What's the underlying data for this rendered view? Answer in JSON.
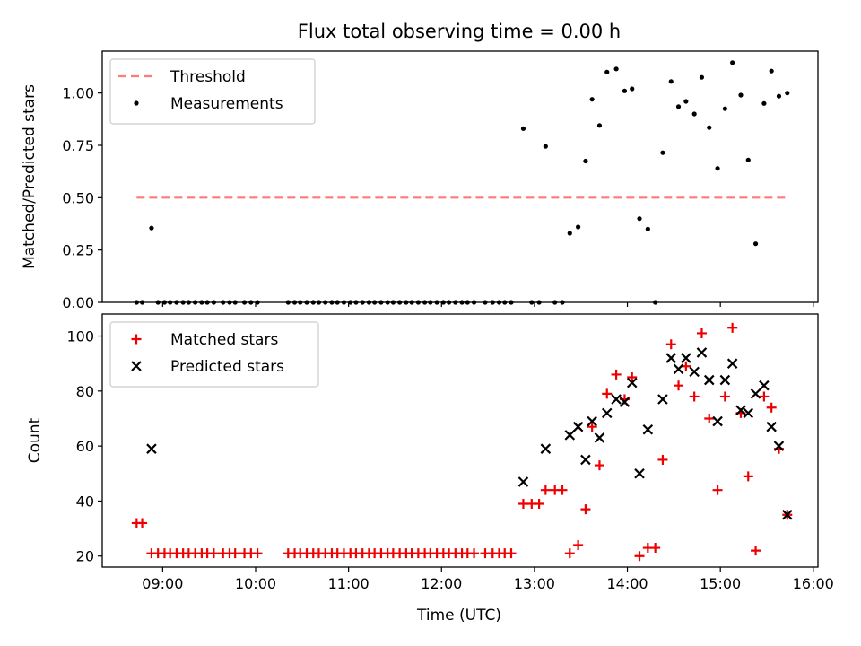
{
  "figure": {
    "title": "Flux total observing time = 0.00 h",
    "xlabel": "Time (UTC)"
  },
  "colors": {
    "threshold": "#ff7a7a",
    "measurements": "#000000",
    "matched": "#ee0000",
    "predicted": "#000000",
    "axes": "#000000",
    "legend_border": "#cccccc"
  },
  "chart_data": [
    {
      "type": "scatter",
      "ylabel": "Matched/Predicted stars",
      "xlim": [
        8.35,
        16.05
      ],
      "ylim": [
        0.0,
        1.2
      ],
      "xticks": [
        9,
        10,
        11,
        12,
        13,
        14,
        15,
        16
      ],
      "xtick_labels": [
        "09:00",
        "10:00",
        "11:00",
        "12:00",
        "13:00",
        "14:00",
        "15:00",
        "16:00"
      ],
      "yticks": [
        0.0,
        0.25,
        0.5,
        0.75,
        1.0
      ],
      "ytick_labels": [
        "0.00",
        "0.25",
        "0.50",
        "0.75",
        "1.00"
      ],
      "grid": false,
      "legend_position": "top-left",
      "threshold": {
        "name": "Threshold",
        "x": [
          8.72,
          15.7
        ],
        "y": 0.5
      },
      "series": [
        {
          "name": "Measurements",
          "x": [
            8.72,
            8.78,
            8.88,
            8.95,
            9.02,
            9.08,
            9.15,
            9.22,
            9.28,
            9.35,
            9.42,
            9.48,
            9.55,
            9.65,
            9.72,
            9.78,
            9.88,
            9.95,
            10.02,
            10.35,
            10.42,
            10.48,
            10.55,
            10.62,
            10.68,
            10.75,
            10.82,
            10.88,
            10.95,
            11.02,
            11.08,
            11.15,
            11.22,
            11.28,
            11.35,
            11.42,
            11.48,
            11.55,
            11.62,
            11.68,
            11.75,
            11.82,
            11.88,
            11.95,
            12.02,
            12.08,
            12.15,
            12.22,
            12.28,
            12.35,
            12.47,
            12.55,
            12.62,
            12.68,
            12.75,
            12.88,
            12.97,
            13.05,
            13.12,
            13.22,
            13.3,
            13.38,
            13.47,
            13.55,
            13.62,
            13.7,
            13.78,
            13.88,
            13.97,
            14.05,
            14.13,
            14.22,
            14.3,
            14.38,
            14.47,
            14.55,
            14.63,
            14.72,
            14.8,
            14.88,
            14.97,
            15.05,
            15.13,
            15.22,
            15.3,
            15.38,
            15.47,
            15.55,
            15.63,
            15.72
          ],
          "y": [
            0.0,
            0.0,
            0.355,
            0.0,
            0.0,
            0.0,
            0.0,
            0.0,
            0.0,
            0.0,
            0.0,
            0.0,
            0.0,
            0.0,
            0.0,
            0.0,
            0.0,
            0.0,
            0.0,
            0.0,
            0.0,
            0.0,
            0.0,
            0.0,
            0.0,
            0.0,
            0.0,
            0.0,
            0.0,
            0.0,
            0.0,
            0.0,
            0.0,
            0.0,
            0.0,
            0.0,
            0.0,
            0.0,
            0.0,
            0.0,
            0.0,
            0.0,
            0.0,
            0.0,
            0.0,
            0.0,
            0.0,
            0.0,
            0.0,
            0.0,
            0.0,
            0.0,
            0.0,
            0.0,
            0.0,
            0.83,
            0.0,
            0.0,
            0.745,
            0.0,
            0.0,
            0.33,
            0.36,
            0.675,
            0.97,
            0.845,
            1.1,
            1.115,
            1.01,
            1.02,
            0.4,
            0.35,
            0.0,
            0.715,
            1.055,
            0.935,
            0.96,
            0.9,
            1.075,
            0.835,
            0.64,
            0.925,
            1.145,
            0.99,
            0.68,
            0.28,
            0.95,
            1.105,
            0.985,
            1.0
          ]
        }
      ]
    },
    {
      "type": "scatter",
      "ylabel": "Count",
      "xlabel": "Time (UTC)",
      "xlim": [
        8.35,
        16.05
      ],
      "ylim": [
        16,
        108
      ],
      "xticks": [
        9,
        10,
        11,
        12,
        13,
        14,
        15,
        16
      ],
      "xtick_labels": [
        "09:00",
        "10:00",
        "11:00",
        "12:00",
        "13:00",
        "14:00",
        "15:00",
        "16:00"
      ],
      "yticks": [
        20,
        40,
        60,
        80,
        100
      ],
      "ytick_labels": [
        "20",
        "40",
        "60",
        "80",
        "100"
      ],
      "grid": false,
      "legend_position": "top-left",
      "series": [
        {
          "name": "Matched stars",
          "marker": "plus",
          "x": [
            8.72,
            8.78,
            8.88,
            8.95,
            9.02,
            9.08,
            9.15,
            9.22,
            9.28,
            9.35,
            9.42,
            9.48,
            9.55,
            9.65,
            9.72,
            9.78,
            9.88,
            9.95,
            10.02,
            10.35,
            10.42,
            10.48,
            10.55,
            10.62,
            10.68,
            10.75,
            10.82,
            10.88,
            10.95,
            11.02,
            11.08,
            11.15,
            11.22,
            11.28,
            11.35,
            11.42,
            11.48,
            11.55,
            11.62,
            11.68,
            11.75,
            11.82,
            11.88,
            11.95,
            12.02,
            12.08,
            12.15,
            12.22,
            12.28,
            12.35,
            12.47,
            12.55,
            12.62,
            12.68,
            12.75,
            12.88,
            12.97,
            13.05,
            13.12,
            13.22,
            13.3,
            13.38,
            13.47,
            13.55,
            13.62,
            13.7,
            13.78,
            13.88,
            13.97,
            14.05,
            14.13,
            14.22,
            14.3,
            14.38,
            14.47,
            14.55,
            14.63,
            14.72,
            14.8,
            14.88,
            14.97,
            15.05,
            15.13,
            15.22,
            15.3,
            15.38,
            15.47,
            15.55,
            15.63,
            15.72
          ],
          "y": [
            32,
            32,
            21,
            21,
            21,
            21,
            21,
            21,
            21,
            21,
            21,
            21,
            21,
            21,
            21,
            21,
            21,
            21,
            21,
            21,
            21,
            21,
            21,
            21,
            21,
            21,
            21,
            21,
            21,
            21,
            21,
            21,
            21,
            21,
            21,
            21,
            21,
            21,
            21,
            21,
            21,
            21,
            21,
            21,
            21,
            21,
            21,
            21,
            21,
            21,
            21,
            21,
            21,
            21,
            21,
            39,
            39,
            39,
            44,
            44,
            44,
            21,
            24,
            37,
            67,
            53,
            79,
            86,
            77,
            85,
            20,
            23,
            23,
            55,
            97,
            82,
            89,
            78,
            101,
            70,
            44,
            78,
            103,
            72,
            49,
            22,
            78,
            74,
            59,
            35
          ]
        },
        {
          "name": "Predicted stars",
          "marker": "x",
          "x": [
            8.88,
            12.88,
            13.12,
            13.38,
            13.47,
            13.55,
            13.62,
            13.7,
            13.78,
            13.88,
            13.97,
            14.05,
            14.13,
            14.22,
            14.38,
            14.47,
            14.55,
            14.63,
            14.72,
            14.8,
            14.88,
            14.97,
            15.05,
            15.13,
            15.22,
            15.3,
            15.38,
            15.47,
            15.55,
            15.63,
            15.72
          ],
          "y": [
            59,
            47,
            59,
            64,
            67,
            55,
            69,
            63,
            72,
            77,
            76,
            83,
            50,
            66,
            77,
            92,
            88,
            92,
            87,
            94,
            84,
            69,
            84,
            90,
            73,
            72,
            79,
            82,
            67,
            60,
            35
          ]
        }
      ]
    }
  ]
}
